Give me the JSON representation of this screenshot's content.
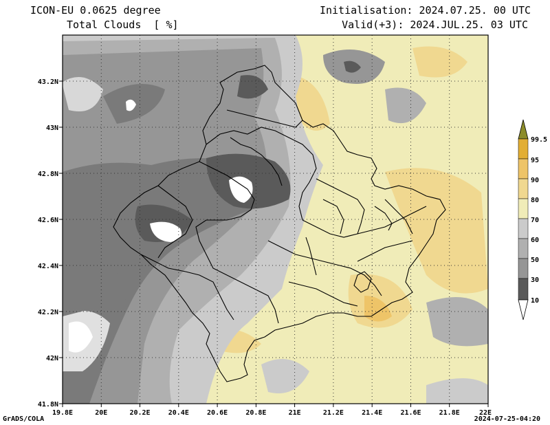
{
  "header": {
    "model_label": "ICON-EU 0.0625 degree",
    "field_label": "Total Clouds  [ %]",
    "init_label": "Initialisation: 2024.07.25. 00 UTC",
    "valid_label": "Valid(+3): 2024.JUL.25. 03 UTC"
  },
  "map": {
    "lon_ticks": [
      "19.8E",
      "20E",
      "20.2E",
      "20.4E",
      "20.6E",
      "20.8E",
      "21E",
      "21.2E",
      "21.4E",
      "21.6E",
      "21.8E",
      "22E"
    ],
    "lat_ticks": [
      "43.2N",
      "43N",
      "42.8N",
      "42.6N",
      "42.4N",
      "42.2N",
      "42N",
      "41.8N"
    ],
    "lon_range": [
      19.8,
      22.0
    ],
    "lat_range": [
      41.8,
      43.4
    ],
    "grid_lines": "dotted"
  },
  "colorbar": {
    "levels": [
      "10",
      "30",
      "50",
      "60",
      "70",
      "80",
      "90",
      "95",
      "99.5"
    ],
    "colors": [
      "#5a5a5a",
      "#7a7a7a",
      "#969696",
      "#b0b0b0",
      "#cbcbcb",
      "#f0ecb8",
      "#f0d890",
      "#eec468",
      "#e2ae34"
    ],
    "top_color": "#8c8c2a",
    "bottom_color": "#ffffff"
  },
  "footer": {
    "left": "GrADS/COLA",
    "right": "2024-07-25-04:20"
  }
}
